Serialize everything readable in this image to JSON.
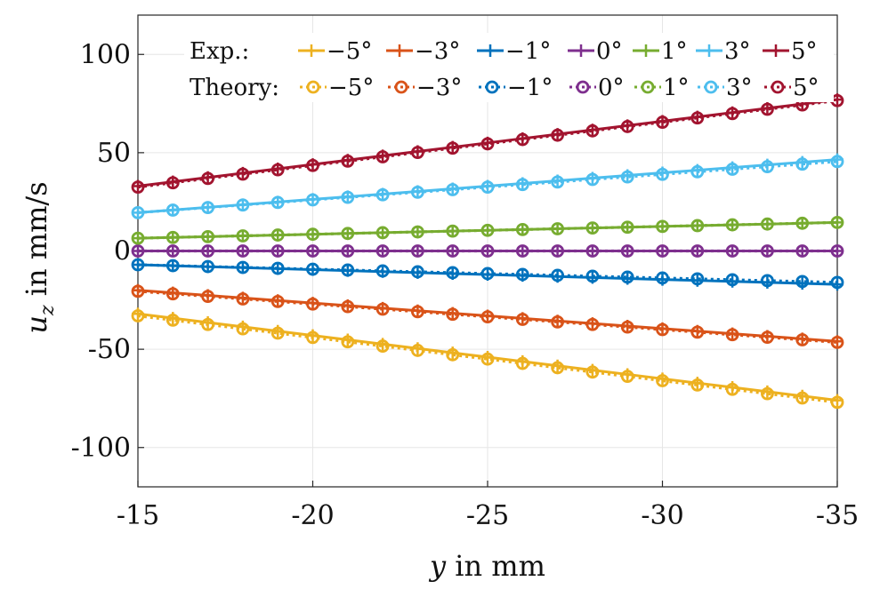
{
  "chart_data": {
    "type": "line",
    "xlabel": "y in mm",
    "ylabel": "u_z in mm/s",
    "xlim": [
      -15,
      -35
    ],
    "ylim": [
      -120,
      120
    ],
    "xticks": [
      -15,
      -20,
      -25,
      -30,
      -35
    ],
    "xtick_labels": [
      "-15",
      "-20",
      "-25",
      "-30",
      "-35"
    ],
    "yticks": [
      -100,
      -50,
      0,
      50,
      100
    ],
    "ytick_labels": [
      "-100",
      "-50",
      "0",
      "50",
      "100"
    ],
    "grid": true,
    "legend": {
      "placement": "top",
      "row_labels": [
        "Exp.:",
        "Theory:"
      ],
      "entries": [
        "−5°",
        "−3°",
        "−1°",
        "0°",
        "1°",
        "3°",
        "5°"
      ]
    },
    "x": [
      -15,
      -16,
      -17,
      -18,
      -19,
      -20,
      -21,
      -22,
      -23,
      -24,
      -25,
      -26,
      -27,
      -28,
      -29,
      -30,
      -31,
      -32,
      -33,
      -34,
      -35
    ],
    "series": [
      {
        "name": "−5°",
        "kind": "Exp.",
        "color": "#EDB120",
        "values": [
          -32,
          -34.2,
          -36.4,
          -38.6,
          -40.8,
          -43,
          -45.2,
          -47.4,
          -49.6,
          -51.8,
          -54,
          -56.2,
          -58.4,
          -60.6,
          -62.8,
          -65,
          -67.2,
          -69.4,
          -71.6,
          -73.8,
          -76
        ]
      },
      {
        "name": "−5°",
        "kind": "Theory",
        "color": "#EDB120",
        "values": [
          -33,
          -35.2,
          -37.4,
          -39.6,
          -41.8,
          -44,
          -46.2,
          -48.4,
          -50.6,
          -52.8,
          -55,
          -57.2,
          -59.4,
          -61.6,
          -63.8,
          -66,
          -68.2,
          -70.4,
          -72.6,
          -74.8,
          -77
        ]
      },
      {
        "name": "−3°",
        "kind": "Exp.",
        "color": "#D95319",
        "values": [
          -20,
          -21.3,
          -22.6,
          -23.9,
          -25.2,
          -26.5,
          -27.8,
          -29.1,
          -30.4,
          -31.7,
          -33,
          -34.3,
          -35.6,
          -36.9,
          -38.2,
          -39.5,
          -40.8,
          -42.1,
          -43.4,
          -44.7,
          -46
        ]
      },
      {
        "name": "−3°",
        "kind": "Theory",
        "color": "#D95319",
        "values": [
          -20.5,
          -21.8,
          -23.1,
          -24.4,
          -25.7,
          -27,
          -28.3,
          -29.6,
          -30.9,
          -32.2,
          -33.5,
          -34.8,
          -36.1,
          -37.4,
          -38.7,
          -40,
          -41.3,
          -42.6,
          -43.9,
          -45.2,
          -46.5
        ]
      },
      {
        "name": "−1°",
        "kind": "Exp.",
        "color": "#0072BD",
        "values": [
          -7,
          -7.5,
          -8,
          -8.5,
          -9,
          -9.5,
          -10,
          -10.5,
          -11,
          -11.5,
          -12,
          -12.5,
          -13,
          -13.5,
          -14,
          -14.5,
          -15,
          -15.5,
          -16,
          -16.5,
          -17
        ]
      },
      {
        "name": "−1°",
        "kind": "Theory",
        "color": "#0072BD",
        "values": [
          -7,
          -7.45,
          -7.9,
          -8.35,
          -8.8,
          -9.25,
          -9.7,
          -10.15,
          -10.6,
          -11.05,
          -11.5,
          -11.95,
          -12.4,
          -12.85,
          -13.3,
          -13.75,
          -14.2,
          -14.65,
          -15.1,
          -15.55,
          -16
        ]
      },
      {
        "name": "0°",
        "kind": "Exp.",
        "color": "#7E2F8E",
        "values": [
          0,
          0,
          0,
          0,
          0,
          0,
          0,
          0,
          0,
          0,
          0,
          0,
          0,
          0,
          0,
          0,
          0,
          0,
          0,
          0,
          0
        ]
      },
      {
        "name": "0°",
        "kind": "Theory",
        "color": "#7E2F8E",
        "values": [
          0,
          0,
          0,
          0,
          0,
          0,
          0,
          0,
          0,
          0,
          0,
          0,
          0,
          0,
          0,
          0,
          0,
          0,
          0,
          0,
          0
        ]
      },
      {
        "name": "1°",
        "kind": "Exp.",
        "color": "#77AC30",
        "values": [
          6.5,
          6.9,
          7.3,
          7.7,
          8.1,
          8.5,
          8.9,
          9.3,
          9.7,
          10.1,
          10.5,
          10.9,
          11.3,
          11.7,
          12.1,
          12.5,
          12.9,
          13.3,
          13.7,
          14.1,
          14.5
        ]
      },
      {
        "name": "1°",
        "kind": "Theory",
        "color": "#77AC30",
        "values": [
          6.5,
          6.9,
          7.3,
          7.7,
          8.1,
          8.5,
          8.9,
          9.3,
          9.7,
          10.1,
          10.5,
          10.9,
          11.3,
          11.7,
          12.1,
          12.5,
          12.9,
          13.3,
          13.7,
          14.1,
          14.5
        ]
      },
      {
        "name": "3°",
        "kind": "Exp.",
        "color": "#4DBEEE",
        "values": [
          19.5,
          20.85,
          22.2,
          23.55,
          24.9,
          26.25,
          27.6,
          28.95,
          30.3,
          31.65,
          33,
          34.35,
          35.7,
          37.05,
          38.4,
          39.75,
          41.1,
          42.45,
          43.8,
          45.15,
          46.5
        ]
      },
      {
        "name": "3°",
        "kind": "Theory",
        "color": "#4DBEEE",
        "values": [
          19.5,
          20.8,
          22.1,
          23.4,
          24.7,
          26,
          27.3,
          28.6,
          29.9,
          31.2,
          32.5,
          33.8,
          35.1,
          36.4,
          37.7,
          39,
          40.3,
          41.6,
          42.9,
          44.2,
          45.5
        ]
      },
      {
        "name": "5°",
        "kind": "Exp.",
        "color": "#A2142F",
        "values": [
          33,
          35.2,
          37.4,
          39.6,
          41.8,
          44,
          46.2,
          48.4,
          50.6,
          52.8,
          55,
          57.2,
          59.4,
          61.6,
          63.8,
          66,
          68.2,
          70.4,
          72.6,
          74.8,
          77
        ]
      },
      {
        "name": "5°",
        "kind": "Theory",
        "color": "#A2142F",
        "values": [
          32.5,
          34.7,
          36.9,
          39.1,
          41.3,
          43.5,
          45.7,
          47.9,
          50.1,
          52.3,
          54.5,
          56.7,
          58.9,
          61.1,
          63.3,
          65.5,
          67.7,
          69.9,
          72.1,
          74.3,
          76.5
        ]
      }
    ]
  }
}
